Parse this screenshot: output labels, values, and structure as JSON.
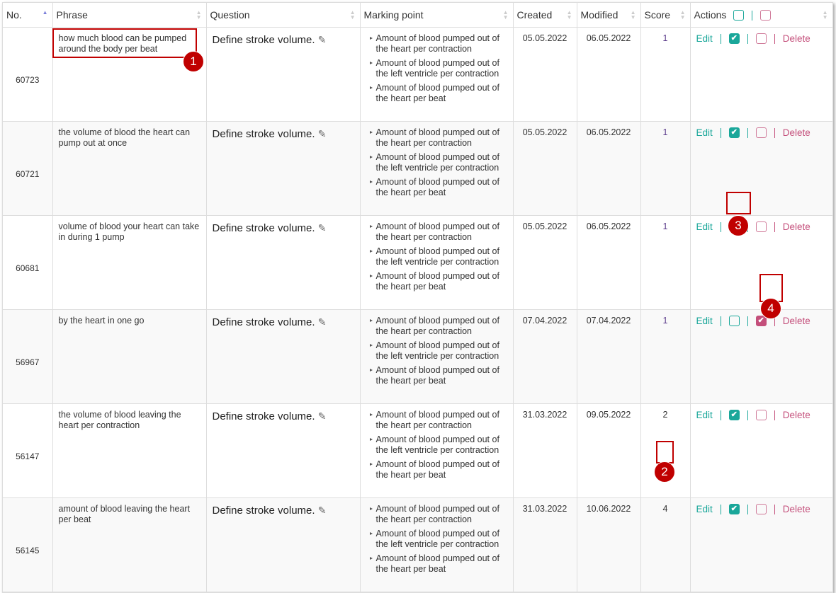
{
  "columns": [
    "No.",
    "Phrase",
    "Question",
    "Marking point",
    "Created",
    "Modified",
    "Score",
    "Actions"
  ],
  "actions": {
    "edit": "Edit",
    "delete": "Delete",
    "check_mark": "✔"
  },
  "colors": {
    "teal": "#1aa79a",
    "pink": "#c44f7b",
    "annotation": "#c00000"
  },
  "rows": [
    {
      "no": "60723",
      "phrase": "how much blood can be pumped around the body per beat",
      "question": "Define stroke volume.",
      "marking": [
        "Amount of blood pumped out of the heart per contraction",
        "Amount of blood pumped out of the left ventricle per contraction",
        "Amount of blood pumped out of the heart per beat"
      ],
      "created": "05.05.2022",
      "modified": "06.05.2022",
      "score": "1",
      "teal_checked": true,
      "pink_checked": false
    },
    {
      "no": "60721",
      "phrase": "the volume of blood the heart can pump out at once",
      "question": "Define stroke volume.",
      "marking": [
        "Amount of blood pumped out of the heart per contraction",
        "Amount of blood pumped out of the left ventricle per contraction",
        "Amount of blood pumped out of the heart per beat"
      ],
      "created": "05.05.2022",
      "modified": "06.05.2022",
      "score": "1",
      "teal_checked": true,
      "pink_checked": false
    },
    {
      "no": "60681",
      "phrase": "volume of blood your heart can take in during 1 pump",
      "question": "Define stroke volume.",
      "marking": [
        "Amount of blood pumped out of the heart per contraction",
        "Amount of blood pumped out of the left ventricle per contraction",
        "Amount of blood pumped out of the heart per beat"
      ],
      "created": "05.05.2022",
      "modified": "06.05.2022",
      "score": "1",
      "teal_checked": true,
      "pink_checked": false
    },
    {
      "no": "56967",
      "phrase": "by the heart in one go",
      "question": "Define stroke volume.",
      "marking": [
        "Amount of blood pumped out of the heart per contraction",
        "Amount of blood pumped out of the left ventricle per contraction",
        "Amount of blood pumped out of the heart per beat"
      ],
      "created": "07.04.2022",
      "modified": "07.04.2022",
      "score": "1",
      "teal_checked": false,
      "pink_checked": true
    },
    {
      "no": "56147",
      "phrase": "the volume of blood leaving the heart per contraction",
      "question": "Define stroke volume.",
      "marking": [
        "Amount of blood pumped out of the heart per contraction",
        "Amount of blood pumped out of the left ventricle per contraction",
        "Amount of blood pumped out of the heart per beat"
      ],
      "created": "31.03.2022",
      "modified": "09.05.2022",
      "score": "2",
      "teal_checked": true,
      "pink_checked": false
    },
    {
      "no": "56145",
      "phrase": "amount of blood leaving the heart per beat",
      "question": "Define stroke volume.",
      "marking": [
        "Amount of blood pumped out of the heart per contraction",
        "Amount of blood pumped out of the left ventricle per contraction",
        "Amount of blood pumped out of the heart per beat"
      ],
      "created": "31.03.2022",
      "modified": "10.06.2022",
      "score": "4",
      "teal_checked": true,
      "pink_checked": false
    }
  ],
  "annotations": [
    "1",
    "2",
    "3",
    "4"
  ]
}
